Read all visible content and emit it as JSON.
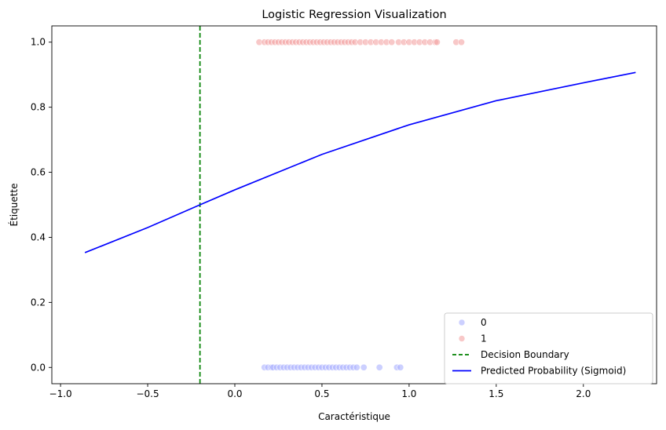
{
  "chart_data": {
    "type": "scatter",
    "title": "Logistic Regression Visualization",
    "xlabel": "Caractéristique",
    "ylabel": "Étiquette",
    "xlim": [
      -1.05,
      2.42
    ],
    "ylim": [
      -0.05,
      1.05
    ],
    "xticks": [
      -1.0,
      -0.5,
      0.0,
      0.5,
      1.0,
      1.5,
      2.0
    ],
    "xtick_labels": [
      "−1.0",
      "−0.5",
      "0.0",
      "0.5",
      "1.0",
      "1.5",
      "2.0"
    ],
    "yticks": [
      0.0,
      0.2,
      0.4,
      0.6,
      0.8,
      1.0
    ],
    "ytick_labels": [
      "0.0",
      "0.2",
      "0.4",
      "0.6",
      "0.8",
      "1.0"
    ],
    "grid": false,
    "legend_placement": "lower-right",
    "series": [
      {
        "name": "0",
        "kind": "scatter",
        "color": "#aab0ff",
        "y": 0,
        "x": [
          0.17,
          0.19,
          0.21,
          0.22,
          0.24,
          0.26,
          0.28,
          0.3,
          0.32,
          0.34,
          0.36,
          0.38,
          0.4,
          0.42,
          0.44,
          0.46,
          0.48,
          0.5,
          0.52,
          0.54,
          0.56,
          0.58,
          0.6,
          0.62,
          0.64,
          0.66,
          0.68,
          0.7,
          0.74,
          0.83,
          0.93,
          0.95
        ]
      },
      {
        "name": "1",
        "kind": "scatter",
        "color": "#f4a3a3",
        "y": 1,
        "x": [
          0.14,
          0.17,
          0.19,
          0.21,
          0.23,
          0.25,
          0.27,
          0.29,
          0.31,
          0.33,
          0.35,
          0.37,
          0.39,
          0.41,
          0.43,
          0.45,
          0.47,
          0.49,
          0.51,
          0.53,
          0.55,
          0.57,
          0.59,
          0.61,
          0.63,
          0.65,
          0.67,
          0.69,
          0.72,
          0.75,
          0.78,
          0.81,
          0.84,
          0.87,
          0.9,
          0.94,
          0.97,
          1.0,
          1.03,
          1.06,
          1.09,
          1.12,
          1.15,
          1.16,
          1.27,
          1.3
        ]
      },
      {
        "name": "Decision Boundary",
        "kind": "vline",
        "color": "#008000",
        "x": -0.2
      },
      {
        "name": "Predicted Probability (Sigmoid)",
        "kind": "line",
        "color": "#0000ff",
        "x": [
          -0.86,
          -0.5,
          -0.2,
          0.0,
          0.5,
          1.0,
          1.5,
          2.0,
          2.3
        ],
        "y": [
          0.353,
          0.43,
          0.5,
          0.546,
          0.655,
          0.746,
          0.82,
          0.875,
          0.907
        ]
      }
    ]
  }
}
